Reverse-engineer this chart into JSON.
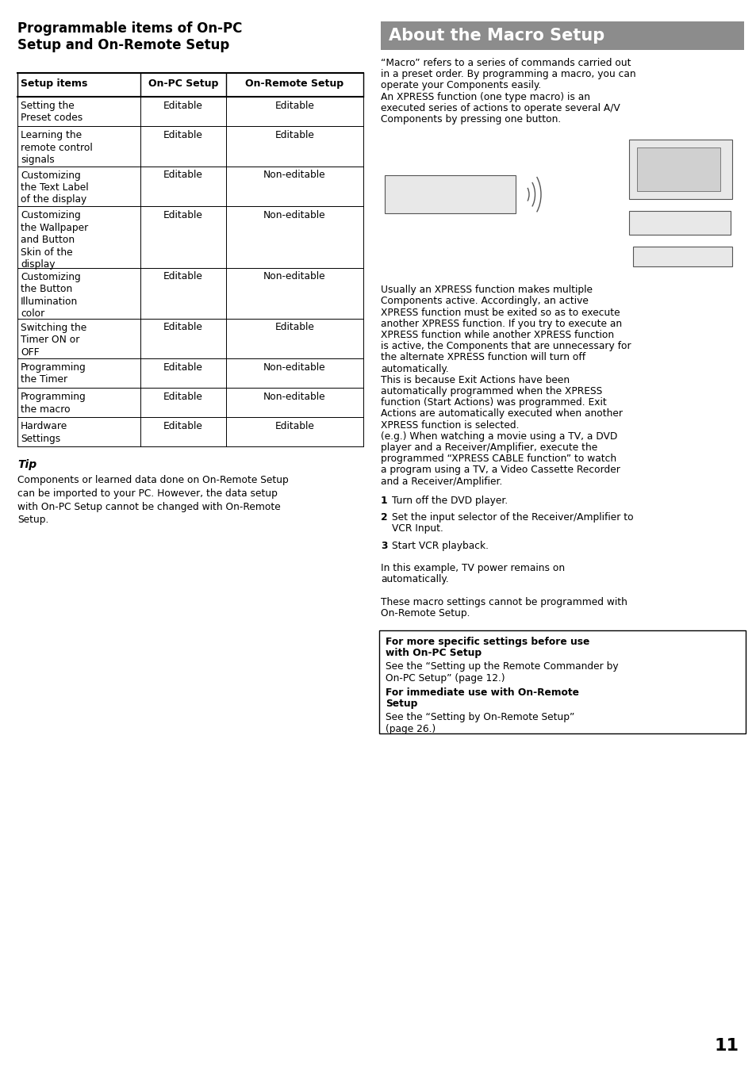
{
  "bg_color": "#ffffff",
  "left_col_title": "Programmable items of On-PC\nSetup and On-Remote Setup",
  "table_headers": [
    "Setup items",
    "On-PC Setup",
    "On-Remote Setup"
  ],
  "table_rows": [
    [
      "Setting the\nPreset codes",
      "Editable",
      "Editable"
    ],
    [
      "Learning the\nremote control\nsignals",
      "Editable",
      "Editable"
    ],
    [
      "Customizing\nthe Text Label\nof the display",
      "Editable",
      "Non-editable"
    ],
    [
      "Customizing\nthe Wallpaper\nand Button\nSkin of the\ndisplay",
      "Editable",
      "Non-editable"
    ],
    [
      "Customizing\nthe Button\nIllumination\ncolor",
      "Editable",
      "Non-editable"
    ],
    [
      "Switching the\nTimer ON or\nOFF",
      "Editable",
      "Editable"
    ],
    [
      "Programming\nthe Timer",
      "Editable",
      "Non-editable"
    ],
    [
      "Programming\nthe macro",
      "Editable",
      "Non-editable"
    ],
    [
      "Hardware\nSettings",
      "Editable",
      "Editable"
    ]
  ],
  "tip_title": "Tip",
  "tip_body": "Components or learned data done on On-Remote Setup\ncan be imported to your PC. However, the data setup\nwith On-PC Setup cannot be changed with On-Remote\nSetup.",
  "right_section_title": "About the Macro Setup",
  "right_section_title_bg": "#8c8c8c",
  "right_section_title_color": "#ffffff",
  "para1_line1": "“Macro” refers to a series of commands carried out",
  "para1_line2": "in a preset order. By programming a macro, you can",
  "para1_line3": "operate your Components easily.",
  "para1_line4": "An XPRESS function (one type macro) is an",
  "para1_line5": "executed series of actions to operate several A/V",
  "para1_line6": "Components by pressing one button.",
  "para2_lines": [
    "Usually an XPRESS function makes multiple",
    "Components active. Accordingly, an active",
    "XPRESS function must be exited so as to execute",
    "another XPRESS function. If you try to execute an",
    "XPRESS function while another XPRESS function",
    "is active, the Components that are unnecessary for",
    "the alternate XPRESS function will turn off",
    "automatically.",
    "This is because Exit Actions have been",
    "automatically programmed when the XPRESS",
    "function (Start Actions) was programmed. Exit",
    "Actions are automatically executed when another",
    "XPRESS function is selected.",
    "(e.g.) When watching a movie using a TV, a DVD",
    "player and a Receiver/Amplifier, execute the",
    "programmed “XPRESS CABLE function” to watch",
    "a program using a TV, a Video Cassette Recorder",
    "and a Receiver/Amplifier."
  ],
  "num1": "Turn off the DVD player.",
  "num2_line1": "Set the input selector of the Receiver/Amplifier to",
  "num2_line2": "VCR Input.",
  "num3": "Start VCR playback.",
  "para3_line1": "In this example, TV power remains on",
  "para3_line2": "automatically.",
  "para4_line1": "These macro settings cannot be programmed with",
  "para4_line2": "On-Remote Setup.",
  "box_title1_line1": "For more specific settings before use",
  "box_title1_line2": "with On-PC Setup",
  "box_body1_line1": "See the “Setting up the Remote Commander by",
  "box_body1_line2": "On-PC Setup” (page 12.)",
  "box_title2": "For immediate use with On-Remote",
  "box_title2b": "Setup",
  "box_body2_line1": "See the “Setting by On-Remote Setup”",
  "box_body2_line2": "(page 26.)",
  "page_number": "11"
}
